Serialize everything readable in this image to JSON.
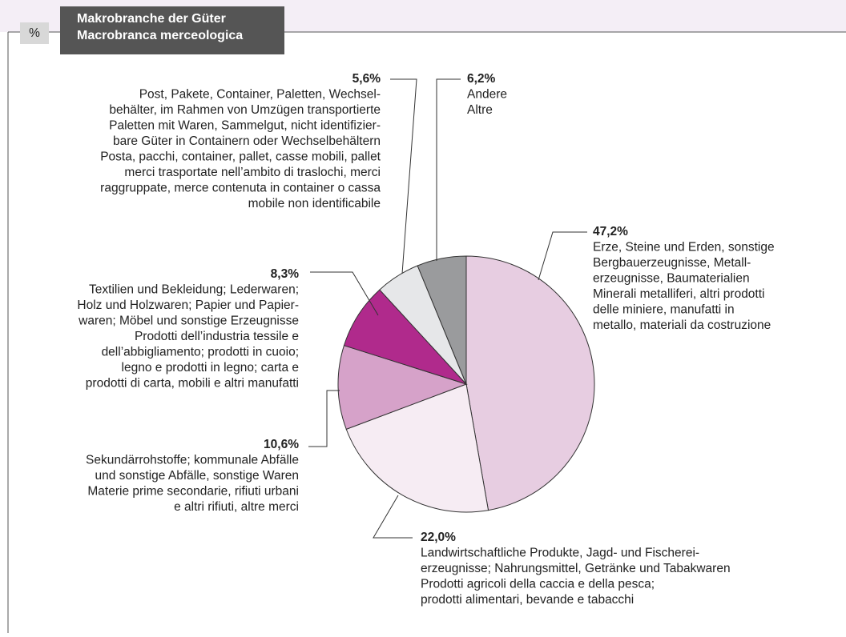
{
  "header": {
    "unit": "%",
    "title": [
      "Makrobranche der Güter",
      "Macrobranca merceologica"
    ]
  },
  "chart_data": {
    "type": "pie",
    "values": [
      47.2,
      22.0,
      10.6,
      8.3,
      5.6,
      6.2
    ],
    "value_labels": [
      "47,2%",
      "22,0%",
      "10,6%",
      "8,3%",
      "5,6%",
      "6,2%"
    ],
    "colors": [
      "#e7cde1",
      "#f6ecf3",
      "#d6a2c9",
      "#b02a8c",
      "#e6e7e9",
      "#9a9b9d"
    ],
    "categories": [
      [
        "Erze, Steine und Erden, sonstige",
        "Bergbauerzeugnisse, Metall-",
        "erzeugnisse, Baumaterialien",
        "Minerali metalliferi, altri prodotti",
        "delle miniere, manufatti in",
        "metallo, materiali da costruzione"
      ],
      [
        "Landwirtschaftliche Produkte, Jagd- und Fischerei-",
        "erzeugnisse; Nahrungsmittel, Getränke und Tabakwaren",
        "Prodotti agricoli della caccia e della pesca;",
        "prodotti alimentari, bevande e tabacchi"
      ],
      [
        "Sekundärrohstoffe; kommunale Abfälle",
        "und sonstige Abfälle, sonstige Waren",
        "Materie prime secondarie, rifiuti urbani",
        "e altri rifiuti, altre merci"
      ],
      [
        "Textilien und Bekleidung; Lederwaren;",
        "Holz und Holzwaren; Papier und Papier-",
        "waren; Möbel und sonstige Erzeugnisse",
        "Prodotti dell’industria tessile e",
        "dell’abbigliamento; prodotti in cuoio;",
        "legno e prodotti in legno; carta e",
        "prodotti di carta, mobili e altri manufatti"
      ],
      [
        "Post, Pakete, Container, Paletten, Wechsel-",
        "behälter, im Rahmen von Umzügen transportierte",
        "Paletten mit Waren, Sammelgut, nicht identifizier-",
        "bare Güter in Containern oder Wechselbehältern",
        "Posta, pacchi, container, pallet, casse mobili, pallet",
        "merci trasportate nell’ambito di traslochi, merci",
        "raggruppate, merce contenuta in container o cassa",
        "mobile non identificabile"
      ],
      [
        "Andere",
        "Altre"
      ]
    ]
  }
}
